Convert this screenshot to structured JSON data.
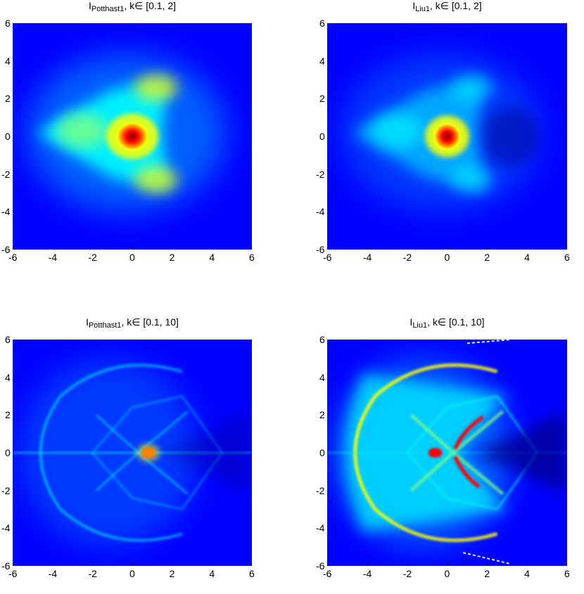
{
  "colors": {
    "colormap": [
      "#00008f",
      "#0000ff",
      "#0080ff",
      "#00ffff",
      "#80ff80",
      "#ffff00",
      "#ff8000",
      "#ff0000",
      "#800000"
    ]
  },
  "panels": [
    {
      "title": {
        "method": "Potthast1",
        "range": "k∈ [0.1, 2]"
      },
      "tick_labels": [
        "-6",
        "-4",
        "-2",
        "0",
        "2",
        "4",
        "6"
      ],
      "image_kind": "smooth-blob",
      "chart_data": {
        "type": "heatmap",
        "title": "I_Potthast1, k∈ [0.1, 2]",
        "xlim": [
          -6,
          6
        ],
        "ylim": [
          -6,
          6
        ],
        "xticks": [
          -6,
          -4,
          -2,
          0,
          2,
          4,
          6
        ],
        "yticks": [
          -6,
          -4,
          -2,
          0,
          2,
          4,
          6
        ],
        "colormap": "jet",
        "features": [
          {
            "x": 0,
            "y": 0,
            "level": 1.0
          },
          {
            "x": 1.2,
            "y": 2.6,
            "level": 0.5
          },
          {
            "x": 1.2,
            "y": -2.3,
            "level": 0.5
          },
          {
            "x": -2.5,
            "y": 0.3,
            "level": 0.45
          }
        ]
      }
    },
    {
      "title": {
        "method": "Liu1",
        "range": "k∈ [0.1, 2]"
      },
      "tick_labels": [
        "-6",
        "-4",
        "-2",
        "0",
        "2",
        "4",
        "6"
      ],
      "image_kind": "smooth-blob",
      "chart_data": {
        "type": "heatmap",
        "title": "I_Liu1, k∈ [0.1, 2]",
        "xlim": [
          -6,
          6
        ],
        "ylim": [
          -6,
          6
        ],
        "xticks": [
          -6,
          -4,
          -2,
          0,
          2,
          4,
          6
        ],
        "yticks": [
          -6,
          -4,
          -2,
          0,
          2,
          4,
          6
        ],
        "colormap": "jet",
        "features": [
          {
            "x": 0,
            "y": 0,
            "level": 1.0
          },
          {
            "x": 1.5,
            "y": 2.9,
            "level": 0.3
          },
          {
            "x": 1.2,
            "y": -2.3,
            "level": 0.3
          },
          {
            "x": -2.5,
            "y": 0.3,
            "level": 0.35
          }
        ]
      }
    },
    {
      "title": {
        "method": "Potthast1",
        "range": "k∈ [0.1, 10]"
      },
      "tick_labels": [
        "-6",
        "-4",
        "-2",
        "0",
        "2",
        "4",
        "6"
      ],
      "image_kind": "arcs-faint",
      "chart_data": {
        "type": "heatmap",
        "title": "I_Potthast1, k∈ [0.1, 10]",
        "xlim": [
          -6,
          6
        ],
        "ylim": [
          -6,
          6
        ],
        "xticks": [
          -6,
          -4,
          -2,
          0,
          2,
          4,
          6
        ],
        "yticks": [
          -6,
          -4,
          -2,
          0,
          2,
          4,
          6
        ],
        "colormap": "jet",
        "features": [
          {
            "x": 0.8,
            "y": 0,
            "level": 1.0
          },
          {
            "x": 0,
            "y": 0,
            "level": 0.45
          }
        ]
      }
    },
    {
      "title": {
        "method": "Liu1",
        "range": "k∈ [0.1, 10]"
      },
      "tick_labels": [
        "-6",
        "-4",
        "-2",
        "0",
        "2",
        "4",
        "6"
      ],
      "image_kind": "arcs-strong",
      "chart_data": {
        "type": "heatmap",
        "title": "I_Liu1, k∈ [0.1, 10]",
        "xlim": [
          -6,
          6
        ],
        "ylim": [
          -6,
          6
        ],
        "xticks": [
          -6,
          -4,
          -2,
          0,
          2,
          4,
          6
        ],
        "yticks": [
          -6,
          -4,
          -2,
          0,
          2,
          4,
          6
        ],
        "colormap": "jet",
        "features": [
          {
            "x": 0.6,
            "y": 1.0,
            "level": 1.0
          },
          {
            "x": 0.6,
            "y": -1.0,
            "level": 1.0
          },
          {
            "x": 0,
            "y": 4.4,
            "level": 0.55
          },
          {
            "x": 0,
            "y": -4.4,
            "level": 0.55
          }
        ]
      }
    }
  ]
}
